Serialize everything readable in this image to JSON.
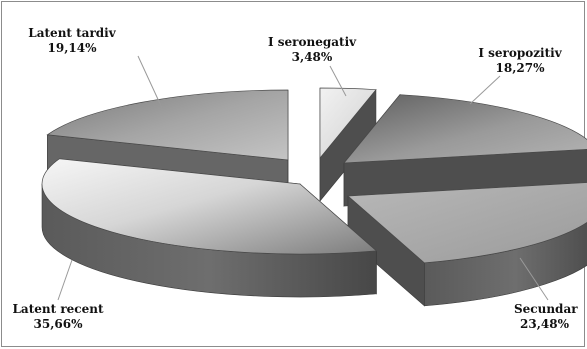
{
  "chart_data": {
    "type": "pie",
    "style": "3d-exploded",
    "title": "",
    "slices": [
      {
        "label": "I seronegativ",
        "value": 3.48,
        "value_text": "3,48%",
        "color": "#e4e4e4"
      },
      {
        "label": "I seropozitiv",
        "value": 18.27,
        "value_text": "18,27%",
        "color": "#8a8a8a"
      },
      {
        "label": "Secundar",
        "value": 23.48,
        "value_text": "23,48%",
        "color": "#a9a9a9"
      },
      {
        "label": "Latent recent",
        "value": 35.66,
        "value_text": "35,66%",
        "color": "#9b9b9b"
      },
      {
        "label": "Latent tardiv",
        "value": 19.14,
        "value_text": "19,14%",
        "color": "#8e8e8e"
      }
    ],
    "legend": "none",
    "data_labels": "outside-with-leader-lines"
  }
}
